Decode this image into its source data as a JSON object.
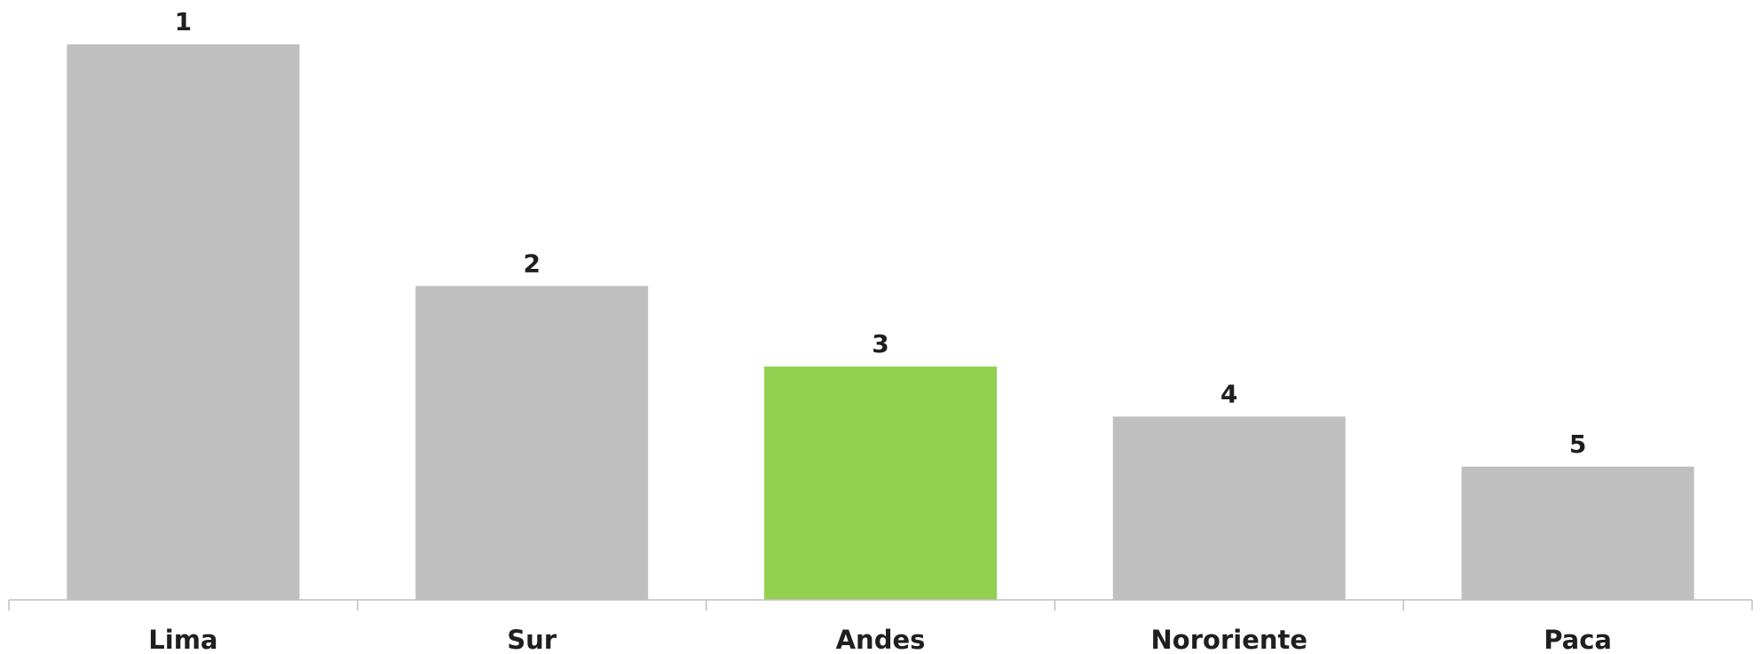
{
  "chart_data": {
    "type": "bar",
    "categories": [
      "Lima",
      "Sur",
      "Andes",
      "Nororiente",
      "Paca"
    ],
    "values": [
      1.0,
      0.565,
      0.42,
      0.33,
      0.24
    ],
    "data_labels": [
      "1",
      "2",
      "3",
      "4",
      "5"
    ],
    "title": "",
    "xlabel": "",
    "ylabel": "",
    "ylim": [
      0,
      1
    ],
    "grid": false,
    "legend": "none",
    "colors": {
      "default_bar": "#bfbfbf",
      "highlight_bar": "#92d050",
      "axis": "#bfbfbf",
      "text": "#1f1f1f"
    },
    "highlight_index": 2
  }
}
